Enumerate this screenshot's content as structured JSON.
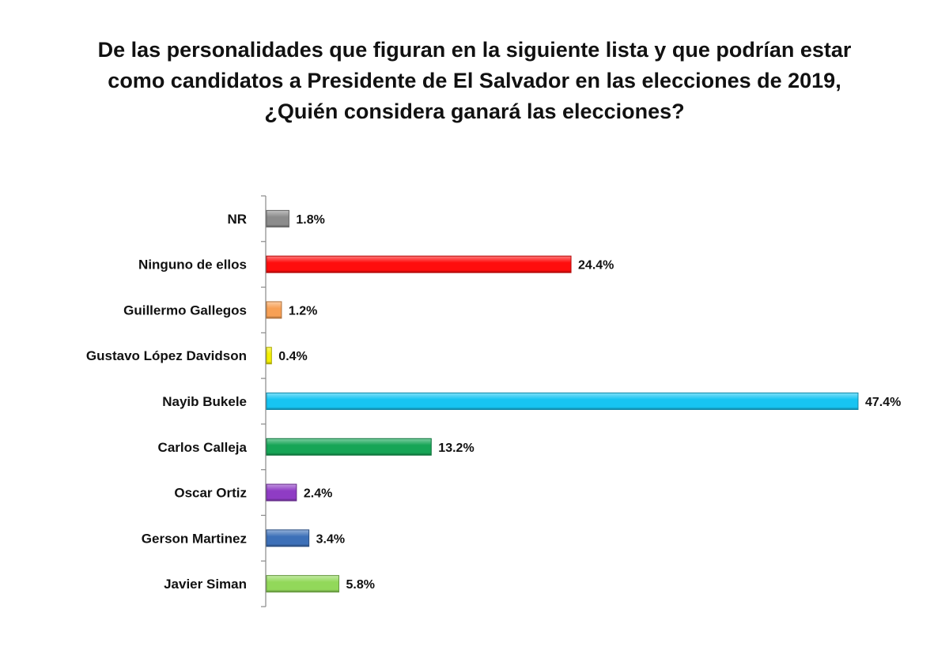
{
  "title_lines": [
    "De las personalidades que figuran en la siguiente lista y que podrían estar",
    "como candidatos a Presidente de El Salvador en las elecciones de 2019,",
    "¿Quién considera ganará las elecciones?"
  ],
  "chart_data": {
    "type": "bar",
    "orientation": "horizontal",
    "title": "De las personalidades que figuran en la siguiente lista y que podrían estar como candidatos a Presidente de El Salvador en las elecciones de 2019, ¿Quién considera ganará las elecciones?",
    "categories": [
      "NR",
      "Ninguno de ellos",
      "Guillermo Gallegos",
      "Gustavo López Davidson",
      "Nayib Bukele",
      "Carlos Calleja",
      "Oscar Ortiz",
      "Gerson Martinez",
      "Javier Siman"
    ],
    "values": [
      1.8,
      24.4,
      1.2,
      0.4,
      47.4,
      13.2,
      2.4,
      3.4,
      5.8
    ],
    "data_labels": [
      "1.8%",
      "24.4%",
      "1.2%",
      "0.4%",
      "47.4%",
      "13.2%",
      "2.4%",
      "3.4%",
      "5.8%"
    ],
    "colors": [
      "#8c8c8c",
      "#ff0d0d",
      "#f7a055",
      "#f4f000",
      "#17c4f2",
      "#16a556",
      "#8f3cc4",
      "#3d70b8",
      "#92d85a"
    ],
    "xlim": [
      0,
      47.4
    ],
    "grid": false,
    "legend": "none"
  }
}
